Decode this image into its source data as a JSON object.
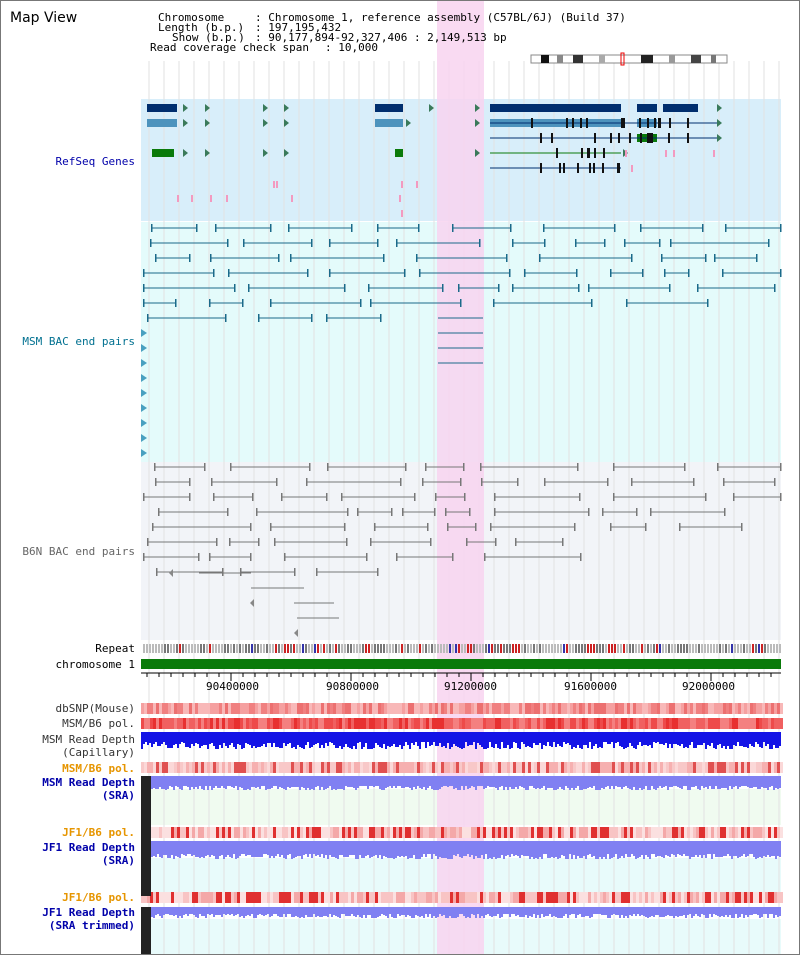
{
  "app": {
    "title": "Map View"
  },
  "header": {
    "chromosome_label": "Chromosome",
    "chromosome_value": ": Chromosome 1, reference assembly (C57BL/6J) (Build 37)",
    "length_label": "Length (b.p.)",
    "length_value": ": 197,195,432",
    "show_label": "Show (b.p.)",
    "show_value": ": 90,177,894-92,327,406 : 2,149,513 bp",
    "span_label": "Read coverage check span",
    "span_value": ": 10,000"
  },
  "tracks": {
    "refseq": "RefSeq Genes",
    "msm_bac": "MSM BAC end pairs",
    "b6n_bac": "B6N BAC end pairs",
    "repeat": "Repeat",
    "chromosome": "chromosome 1",
    "dbsnp": "dbSNP(Mouse)",
    "msm_b6_pol_1": "MSM/B6 pol.",
    "msm_read_depth_cap_1": "MSM Read Depth",
    "msm_read_depth_cap_2": "(Capillary)",
    "msm_b6_pol_2": "MSM/B6 pol.",
    "msm_read_depth_sra_1": "MSM Read Depth",
    "msm_read_depth_sra_2": "(SRA)",
    "jf1_b6_pol_1": "JF1/B6 pol.",
    "jf1_read_depth_sra_1": "JF1 Read Depth",
    "jf1_read_depth_sra_2": "(SRA)",
    "jf1_b6_pol_2": "JF1/B6 pol.",
    "jf1_read_depth_trim_1": "JF1 Read Depth",
    "jf1_read_depth_trim_2": "(SRA trimmed)"
  },
  "axis": {
    "ticks": [
      "90400000",
      "90800000",
      "91200000",
      "91600000",
      "92000000"
    ]
  },
  "colors": {
    "refseq_bg": "#d8eefa",
    "msm_bg": "#e4fbfb",
    "b6n_bg": "#f2f4f8",
    "highlight": "#f8d4f0",
    "msm_color": "#1a6a8a",
    "b6n_color": "#777777",
    "gene_dark": "#002e6e",
    "gene_mid": "#4d93bd",
    "gene_green": "#0a7a0a",
    "label_blue": "#0000aa",
    "label_teal": "#007090",
    "label_orange": "#e69500",
    "chrom_green": "#0a7a0a",
    "depth_blue": "#1414e6",
    "depth_light": "#8080f2"
  }
}
